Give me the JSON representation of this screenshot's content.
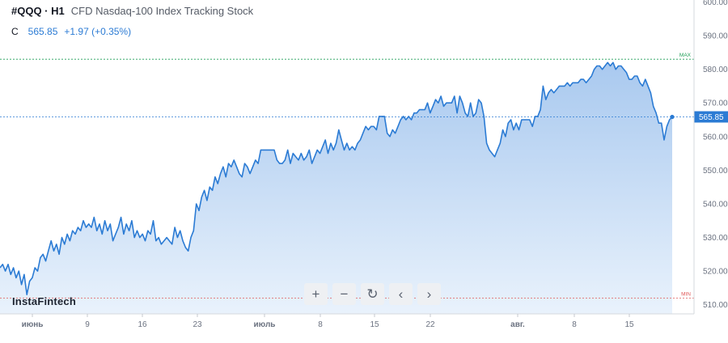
{
  "header": {
    "symbol": "#QQQ · H1",
    "description": "CFD Nasdaq-100 Index Tracking Stock",
    "close_label": "C",
    "close_value": "565.85",
    "change": "+1.97 (+0.35%)"
  },
  "brand": "InstaFintech",
  "toolbar": {
    "zoom_in": "+",
    "zoom_out": "−",
    "reset": "↻",
    "prev": "‹",
    "next": "›"
  },
  "colors": {
    "line": "#2b7bd4",
    "fill_top": "#a9c9ef",
    "fill_bottom": "#e9f2fc",
    "max_line": "#1f9e57",
    "min_line": "#e05a5a",
    "price_tag": "#2b7bd4"
  },
  "chart_data": {
    "type": "area",
    "x_labels": [
      "июнь",
      "9",
      "16",
      "23",
      "июль",
      "8",
      "15",
      "22",
      "авг.",
      "8",
      "15"
    ],
    "y_ticks": [
      510,
      520,
      530,
      540,
      550,
      560,
      570,
      580,
      590,
      600
    ],
    "ylim": [
      505,
      600
    ],
    "max_label": "MAX",
    "max_value": 583,
    "min_label": "MIN",
    "min_value": 512,
    "last_price_label": "565.85",
    "last_price": 565.85,
    "series": [
      {
        "values": [
          521,
          522,
          520,
          522,
          519,
          521,
          518,
          520,
          516,
          519,
          513,
          517,
          518,
          521,
          520,
          524,
          525,
          523,
          526,
          529,
          526,
          528,
          525,
          530,
          528,
          531,
          529,
          532,
          531,
          533,
          532,
          535,
          533,
          534,
          533,
          536,
          532,
          534,
          531,
          535,
          532,
          534,
          529,
          531,
          533,
          536,
          531,
          534,
          532,
          535,
          530,
          532,
          530,
          531,
          529,
          532,
          531,
          535,
          529,
          530,
          528,
          529,
          530,
          529,
          528,
          533,
          530,
          532,
          529,
          527,
          526,
          530,
          532,
          540,
          538,
          542,
          544,
          541,
          545,
          544,
          548,
          546,
          549,
          551,
          548,
          552,
          551,
          553,
          551,
          549,
          548,
          552,
          551,
          549,
          551,
          553,
          552,
          556,
          556,
          556,
          556,
          556,
          556,
          553,
          552,
          552,
          553,
          556,
          552,
          555,
          554,
          553,
          555,
          553,
          554,
          556,
          552,
          554,
          556,
          555,
          557,
          559,
          555,
          558,
          556,
          558,
          562,
          559,
          556,
          558,
          556,
          557,
          556,
          558,
          559,
          561,
          563,
          562,
          563,
          563,
          562,
          566,
          566,
          566,
          561,
          560,
          562,
          561,
          563,
          565,
          566,
          565,
          566,
          565,
          567,
          567,
          568,
          568,
          568,
          570,
          567,
          569,
          571,
          570,
          572,
          569,
          570,
          570,
          570,
          572,
          567,
          572,
          570,
          567,
          566,
          570,
          566,
          567,
          571,
          570,
          566,
          558,
          556,
          555,
          554,
          556,
          558,
          562,
          560,
          564,
          565,
          562,
          564,
          562,
          565,
          565,
          565,
          565,
          563,
          566,
          566,
          568,
          575,
          571,
          573,
          574,
          573,
          574,
          575,
          575,
          575,
          576,
          575,
          576,
          576,
          576,
          577,
          577,
          576,
          577,
          578,
          580,
          581,
          581,
          580,
          581,
          582,
          581,
          582,
          580,
          581,
          581,
          580,
          579,
          577,
          577,
          578,
          578,
          576,
          575,
          577,
          575,
          573,
          569,
          567,
          564,
          564,
          559,
          563,
          565,
          565.85
        ]
      }
    ]
  }
}
